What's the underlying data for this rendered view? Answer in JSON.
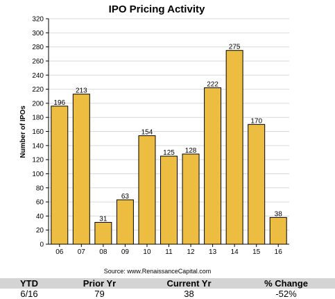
{
  "chart_data": {
    "type": "bar",
    "title": "IPO Pricing Activity",
    "ylabel": "Number of IPOs",
    "xlabel": "",
    "categories": [
      "06",
      "07",
      "08",
      "09",
      "10",
      "11",
      "12",
      "13",
      "14",
      "15",
      "16"
    ],
    "values": [
      196,
      213,
      31,
      63,
      154,
      125,
      128,
      222,
      275,
      170,
      38
    ],
    "ylim": [
      0,
      320
    ],
    "ytick_step": 20,
    "grid": true,
    "bar_color": "#ecbd40",
    "source": "Source: www.RenaissanceCapital.com"
  },
  "summary_table": {
    "headers": [
      "YTD",
      "Prior Yr",
      "Current Yr",
      "% Change"
    ],
    "row": [
      "6/16",
      "79",
      "38",
      "-52%"
    ]
  }
}
